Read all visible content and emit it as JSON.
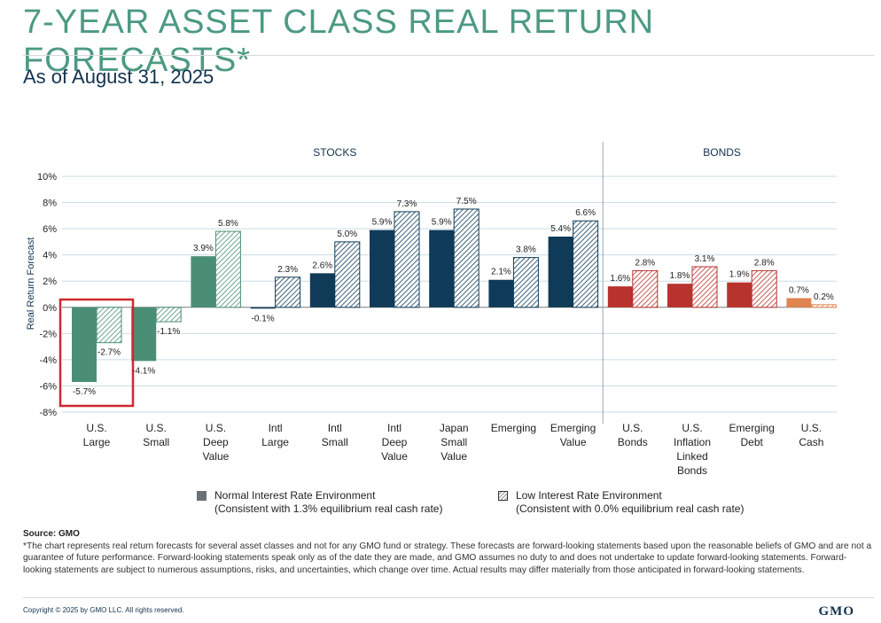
{
  "header": {
    "title": "7-YEAR ASSET CLASS REAL RETURN FORECASTS*",
    "subtitle": "As of August 31, 2025"
  },
  "colors": {
    "us_equity": "#4a8f75",
    "intl_equity": "#0f3b58",
    "bonds": "#b8332e",
    "cash": "#e0854f",
    "highlight_box": "#d0282e"
  },
  "chart_data": {
    "type": "bar",
    "title": "7-YEAR ASSET CLASS REAL RETURN FORECASTS*",
    "ylabel": "Real Return Forecast",
    "ylim": [
      -8,
      10
    ],
    "yticks": [
      -8,
      -6,
      -4,
      -2,
      0,
      2,
      4,
      6,
      8,
      10
    ],
    "grid": true,
    "sections": [
      {
        "label": "STOCKS",
        "category_count": 9
      },
      {
        "label": "BONDS",
        "category_count": 4
      }
    ],
    "categories": [
      {
        "label": [
          "U.S.",
          "Large"
        ],
        "group": "us_equity",
        "highlighted": true
      },
      {
        "label": [
          "U.S.",
          "Small"
        ],
        "group": "us_equity"
      },
      {
        "label": [
          "U.S.",
          "Deep",
          "Value"
        ],
        "group": "us_equity"
      },
      {
        "label": [
          "Intl",
          "Large"
        ],
        "group": "intl_equity"
      },
      {
        "label": [
          "Intl",
          "Small"
        ],
        "group": "intl_equity"
      },
      {
        "label": [
          "Intl",
          "Deep",
          "Value"
        ],
        "group": "intl_equity"
      },
      {
        "label": [
          "Japan",
          "Small",
          "Value"
        ],
        "group": "intl_equity"
      },
      {
        "label": [
          "Emerging"
        ],
        "group": "intl_equity"
      },
      {
        "label": [
          "Emerging",
          "Value"
        ],
        "group": "intl_equity"
      },
      {
        "label": [
          "U.S.",
          "Bonds"
        ],
        "group": "bonds"
      },
      {
        "label": [
          "U.S.",
          "Inflation",
          "Linked",
          "Bonds"
        ],
        "group": "bonds"
      },
      {
        "label": [
          "Emerging",
          "Debt"
        ],
        "group": "bonds"
      },
      {
        "label": [
          "U.S.",
          "Cash"
        ],
        "group": "cash"
      }
    ],
    "series": [
      {
        "name": "Normal Interest Rate Environment",
        "note": "(Consistent with 1.3% equilibrium real cash rate)",
        "style": "solid",
        "values": [
          -5.7,
          -4.1,
          3.9,
          -0.1,
          2.6,
          5.9,
          5.9,
          2.1,
          5.4,
          1.6,
          1.8,
          1.9,
          0.7
        ],
        "labels": [
          "-5.7%",
          "-4.1%",
          "3.9%",
          "-0.1%",
          "2.6%",
          "5.9%",
          "5.9%",
          "2.1%",
          "5.4%",
          "1.6%",
          "1.8%",
          "1.9%",
          "0.7%"
        ]
      },
      {
        "name": "Low Interest Rate Environment",
        "note": "(Consistent with 0.0% equilibrium real cash rate)",
        "style": "hatched",
        "values": [
          -2.7,
          -1.1,
          5.8,
          2.3,
          5.0,
          7.3,
          7.5,
          3.8,
          6.6,
          2.8,
          3.1,
          2.8,
          0.2
        ],
        "labels": [
          "-2.7%",
          "-1.1%",
          "5.8%",
          "2.3%",
          "5.0%",
          "7.3%",
          "7.5%",
          "3.8%",
          "6.6%",
          "2.8%",
          "3.1%",
          "2.8%",
          "0.2%"
        ]
      }
    ]
  },
  "legend": {
    "normal_label": "Normal Interest Rate Environment",
    "normal_note": "(Consistent with 1.3% equilibrium real cash rate)",
    "low_label": "Low Interest Rate Environment",
    "low_note": "(Consistent with 0.0% equilibrium real cash rate)"
  },
  "footer": {
    "source": "Source: GMO",
    "note": "*The chart represents real return forecasts for several asset classes and not for any GMO fund or strategy. These forecasts are forward-looking statements based upon the reasonable beliefs of GMO and are not a guarantee of future performance. Forward-looking statements speak only as of the date they are made, and GMO assumes no duty to and does not undertake to update forward-looking statements. Forward-looking statements are subject to numerous assumptions, risks, and uncertainties, which change over time.  Actual results may differ materially from those anticipated in forward-looking statements.",
    "copyright": "Copyright © 2025 by GMO LLC. All rights reserved.",
    "logo": "GMO"
  }
}
